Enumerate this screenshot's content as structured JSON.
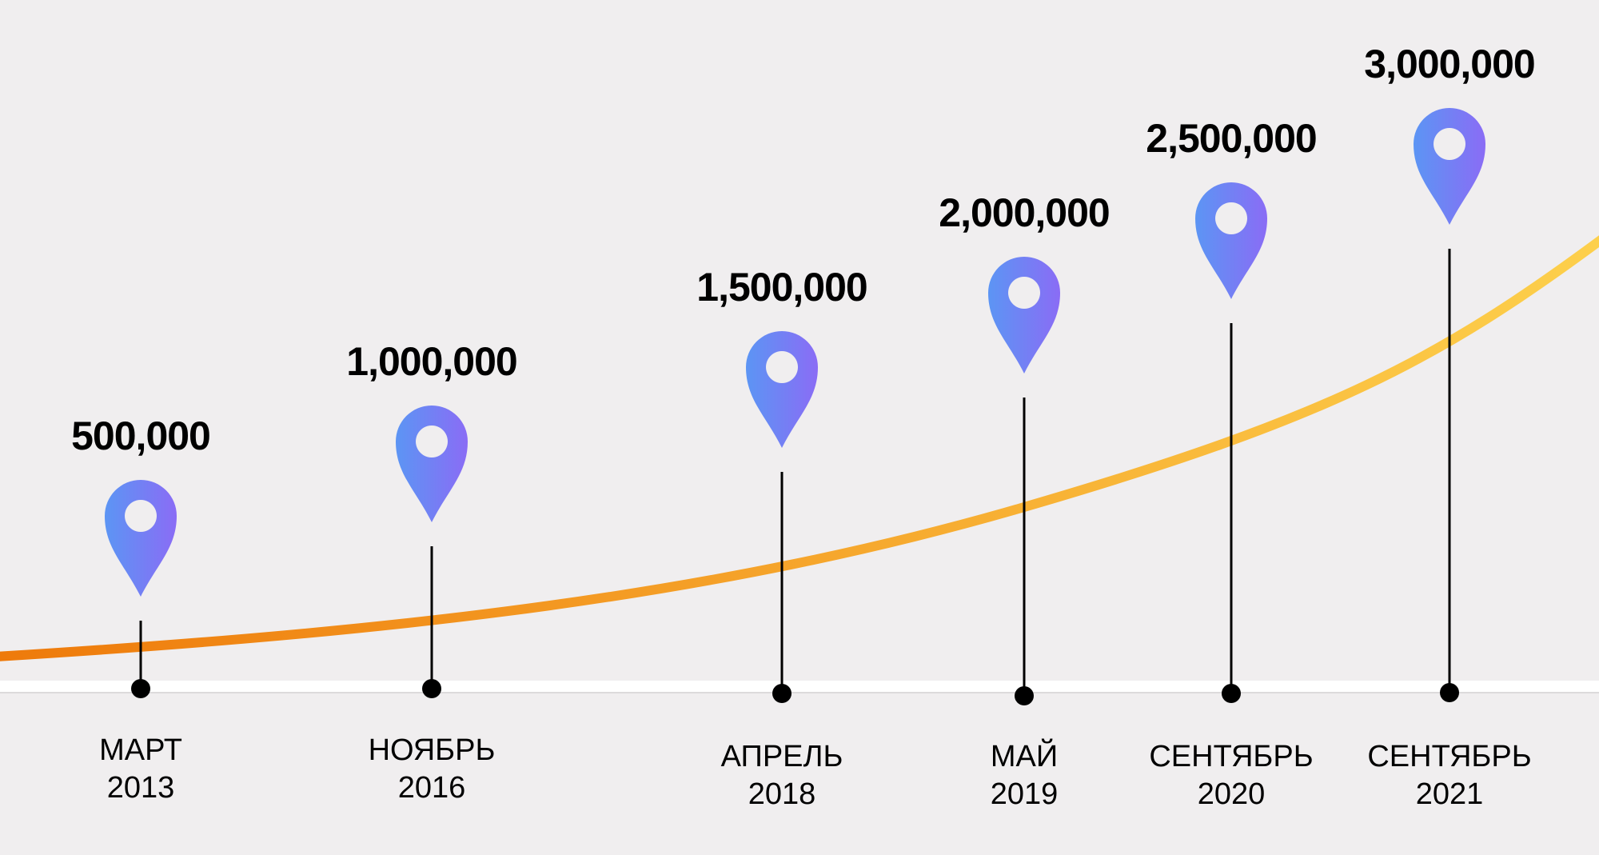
{
  "chart_data": {
    "type": "line",
    "title": "",
    "xlabel": "",
    "ylabel": "",
    "ylim": [
      0,
      3000000
    ],
    "grid": false,
    "categories": [
      {
        "month": "МАРТ",
        "year": "2013"
      },
      {
        "month": "НОЯБРЬ",
        "year": "2016"
      },
      {
        "month": "АПРЕЛЬ",
        "year": "2018"
      },
      {
        "month": "МАЙ",
        "year": "2019"
      },
      {
        "month": "СЕНТЯБРЬ",
        "year": "2020"
      },
      {
        "month": "СЕНТЯБРЬ",
        "year": "2021"
      }
    ],
    "values": [
      500000,
      1000000,
      1500000,
      2000000,
      2500000,
      3000000
    ],
    "value_labels": [
      "500,000",
      "1,000,000",
      "1,500,000",
      "2,000,000",
      "2,500,000",
      "3,000,000"
    ],
    "marker_icon": "map-pin-icon",
    "colors": {
      "background": "#f0eeef",
      "curve_start": "#ee7a0b",
      "curve_end": "#fdd04c",
      "pin_start": "#5c95f4",
      "pin_end": "#8a6cf5",
      "axis": "#ffffff",
      "stem": "#000000"
    }
  }
}
